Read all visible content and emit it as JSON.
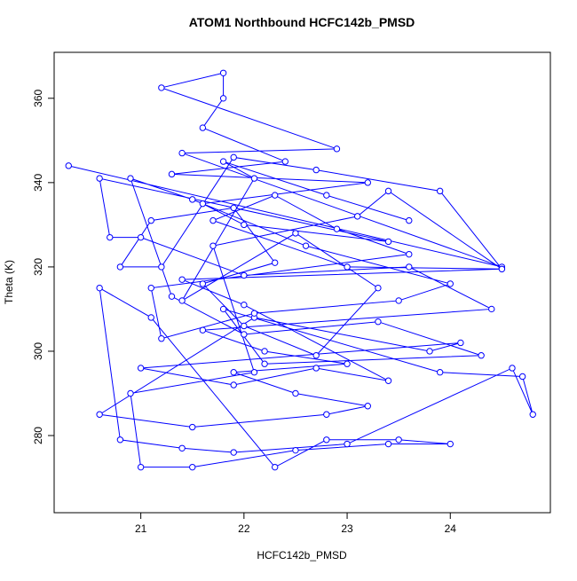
{
  "chart_data": {
    "type": "line",
    "markers": true,
    "title": "ATOM1 Northbound HCFC142b_PMSD",
    "xlabel": "HCFC142b_PMSD",
    "ylabel": "Theta (K)",
    "color": "#0000ff",
    "x": [
      20.3,
      24.5,
      21.4,
      22.9,
      21.2,
      21.8,
      21.8,
      21.6,
      22.4,
      21.3,
      23.2,
      21.6,
      22.0,
      23.4,
      20.6,
      20.7,
      21.0,
      22.0,
      23.6,
      24.4,
      21.6,
      22.2,
      23.0,
      21.9,
      22.5,
      23.2,
      22.8,
      21.5,
      20.6,
      22.1,
      23.8,
      24.1,
      21.0,
      21.9,
      22.7,
      23.4,
      22.0,
      21.4,
      24.5,
      23.0,
      21.7,
      22.3,
      22.9,
      23.6,
      21.1,
      21.2,
      22.1,
      23.5,
      24.0,
      22.6,
      21.5,
      20.9,
      21.3,
      22.0,
      23.3,
      24.3,
      22.2,
      21.8,
      23.9,
      24.7,
      24.8,
      24.6,
      23.0,
      21.9,
      21.4,
      20.8,
      20.6,
      21.1,
      22.3,
      22.8,
      23.5,
      24.0,
      23.4,
      22.5,
      21.5,
      21.0,
      20.9,
      22.1,
      21.7,
      23.1,
      23.4,
      24.5,
      23.9,
      22.7,
      21.9,
      21.2,
      20.8,
      21.1,
      21.9,
      22.3,
      21.6,
      22.0,
      22.7,
      23.3,
      22.5,
      21.4,
      22.1,
      21.8,
      22.8,
      23.6
    ],
    "values": [
      344,
      320,
      347,
      348,
      362.5,
      366,
      360,
      353,
      345,
      342,
      340,
      335,
      330,
      326,
      341,
      327,
      327,
      318,
      320,
      310,
      305,
      300,
      297,
      295,
      290,
      287,
      285,
      282,
      285,
      308,
      300,
      302,
      296,
      292,
      296,
      293,
      311,
      317,
      319.5,
      320,
      331,
      337,
      329,
      323,
      315,
      303,
      309,
      312,
      316,
      325,
      336,
      341,
      313,
      304,
      307,
      299,
      297,
      310,
      295,
      294,
      285,
      296,
      278,
      276,
      277,
      279,
      315,
      308,
      272.5,
      279,
      279,
      278,
      278,
      276.5,
      272.5,
      272.5,
      290,
      295,
      325,
      332,
      338,
      319.5,
      338,
      343,
      346,
      320,
      320,
      331,
      334,
      321,
      316,
      306,
      299,
      315,
      328,
      312,
      341,
      345,
      337,
      331
    ],
    "xlim": [
      20.16,
      24.97
    ],
    "ylim": [
      261.7,
      370.9
    ],
    "xticks": [
      21,
      22,
      23,
      24
    ],
    "yticks": [
      280,
      300,
      320,
      340,
      360
    ]
  }
}
